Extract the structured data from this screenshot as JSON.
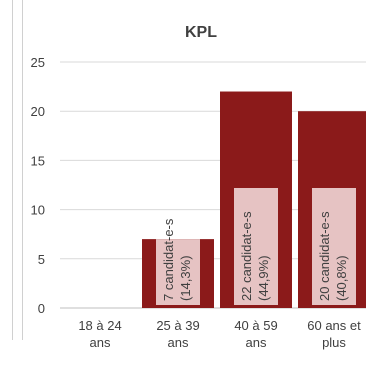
{
  "chart_data": {
    "type": "bar",
    "title": "KPL",
    "categories": [
      [
        "18 à 24",
        "ans"
      ],
      [
        "25 à 39",
        "ans"
      ],
      [
        "40 à 59",
        "ans"
      ],
      [
        "60 ans et",
        "plus"
      ]
    ],
    "values": [
      0,
      7,
      22,
      20
    ],
    "data_labels": [
      "",
      [
        "7 candidat-e-s",
        "(14,3%)"
      ],
      [
        "22 candidat-e-s",
        "(44,9%)"
      ],
      [
        "20 candidat-e-s",
        "(40,8%)"
      ]
    ],
    "ylim": [
      0,
      25
    ],
    "yticks": [
      0,
      5,
      10,
      15,
      20,
      25
    ],
    "grid": true,
    "colors": {
      "bar": "#8b1a1a",
      "label_box": "#e6c3c3",
      "grid": "#d9d9d9",
      "axis": "#bfbfbf"
    }
  }
}
